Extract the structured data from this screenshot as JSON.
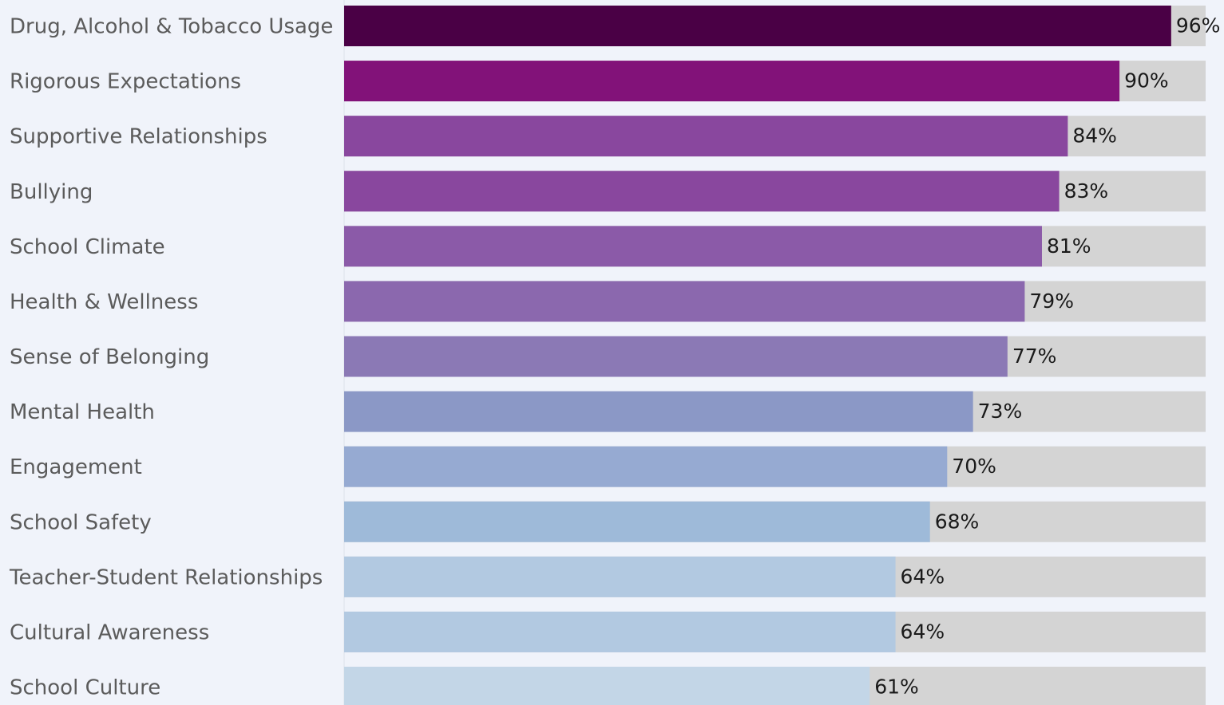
{
  "chart_data": {
    "type": "bar",
    "orientation": "horizontal",
    "title": "",
    "xlabel": "",
    "ylabel": "",
    "xlim": [
      0,
      100
    ],
    "grid": false,
    "legend": "none",
    "value_format": "{v}%",
    "background_track_color": "#d4d4d4",
    "categories": [
      "Drug, Alcohol & Tobacco Usage",
      "Rigorous Expectations",
      "Supportive Relationships",
      "Bullying",
      "School Climate",
      "Health & Wellness",
      "Sense of Belonging",
      "Mental Health",
      "Engagement",
      "School Safety",
      "Teacher-Student Relationships",
      "Cultural Awareness",
      "School Culture"
    ],
    "values": [
      96,
      90,
      84,
      83,
      81,
      79,
      77,
      73,
      70,
      68,
      64,
      64,
      61
    ],
    "colors": [
      "#4a0045",
      "#821279",
      "#89479e",
      "#89479e",
      "#8b5aa8",
      "#8b68ae",
      "#8b79b5",
      "#8b98c6",
      "#96aad2",
      "#9ebad9",
      "#b2c9e1",
      "#b2c9e1",
      "#c3d6e7"
    ]
  }
}
